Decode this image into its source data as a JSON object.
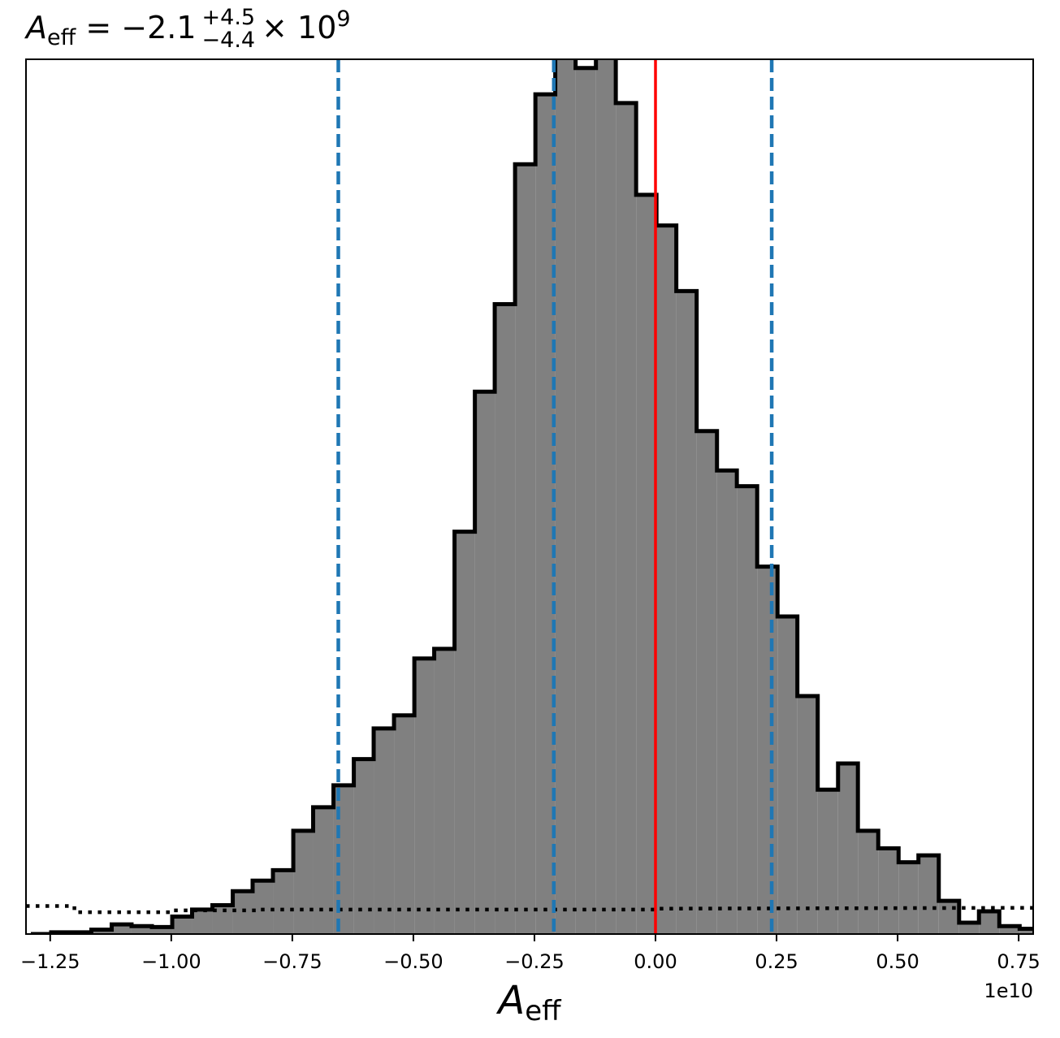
{
  "chart_data": {
    "type": "histogram",
    "title": {
      "symbol": "A",
      "subscript": "eff",
      "equals": "=",
      "median": "−2.1",
      "upper_err": "+4.5",
      "lower_err": "−4.4",
      "times": "× 10",
      "exponent": "9"
    },
    "xlabel": {
      "symbol": "A",
      "subscript": "eff"
    },
    "offset_text": "1e10",
    "x_scale_note": "x values in units of 1e10",
    "xlim": [
      -1.3,
      0.78
    ],
    "ylim": [
      0,
      1.0
    ],
    "xticks": [
      -1.25,
      -1.0,
      -0.75,
      -0.5,
      -0.25,
      0.0,
      0.25,
      0.5,
      0.75
    ],
    "xtick_labels": [
      "−1.25",
      "−1.00",
      "−0.75",
      "−0.50",
      "−0.25",
      "0.00",
      "0.25",
      "0.50",
      "0.75"
    ],
    "bin_edges": [
      -1.29,
      -1.248,
      -1.207,
      -1.165,
      -1.123,
      -1.082,
      -1.04,
      -0.998,
      -0.957,
      -0.915,
      -0.873,
      -0.832,
      -0.79,
      -0.748,
      -0.707,
      -0.665,
      -0.623,
      -0.582,
      -0.54,
      -0.498,
      -0.457,
      -0.415,
      -0.373,
      -0.332,
      -0.29,
      -0.248,
      -0.207,
      -0.165,
      -0.123,
      -0.082,
      -0.04,
      0.002,
      0.043,
      0.085,
      0.127,
      0.168,
      0.21,
      0.252,
      0.293,
      0.335,
      0.377,
      0.418,
      0.46,
      0.502,
      0.543,
      0.585,
      0.627,
      0.668,
      0.71,
      0.752
    ],
    "counts": [
      0.0,
      0.002,
      0.002,
      0.005,
      0.011,
      0.009,
      0.008,
      0.02,
      0.028,
      0.033,
      0.049,
      0.061,
      0.073,
      0.118,
      0.145,
      0.17,
      0.2,
      0.235,
      0.25,
      0.315,
      0.326,
      0.46,
      0.62,
      0.72,
      0.88,
      0.96,
      1.01,
      0.99,
      1.008,
      0.95,
      0.845,
      0.81,
      0.735,
      0.575,
      0.53,
      0.512,
      0.42,
      0.363,
      0.272,
      0.165,
      0.195,
      0.118,
      0.098,
      0.082,
      0.09,
      0.038,
      0.013,
      0.026,
      0.009,
      0.006
    ],
    "fill_color": "#808080",
    "edge_color": "#000000",
    "prior": {
      "style": "dotted",
      "color": "#000000",
      "x": [
        -1.3,
        -1.2,
        -1.2,
        -1.0,
        -1.0,
        -0.82,
        -0.82,
        0.0,
        0.0,
        0.78
      ],
      "y": [
        0.032,
        0.032,
        0.025,
        0.025,
        0.027,
        0.027,
        0.028,
        0.028,
        0.029,
        0.03
      ]
    },
    "vlines": [
      {
        "x": -0.655,
        "color": "#1f77b4",
        "style": "dashed",
        "role": "lower"
      },
      {
        "x": -0.21,
        "color": "#1f77b4",
        "style": "dashed",
        "role": "median"
      },
      {
        "x": 0.24,
        "color": "#1f77b4",
        "style": "dashed",
        "role": "upper"
      },
      {
        "x": 0.0,
        "color": "#ff0000",
        "style": "solid",
        "role": "truth"
      }
    ],
    "grid": false,
    "legend": "none"
  }
}
